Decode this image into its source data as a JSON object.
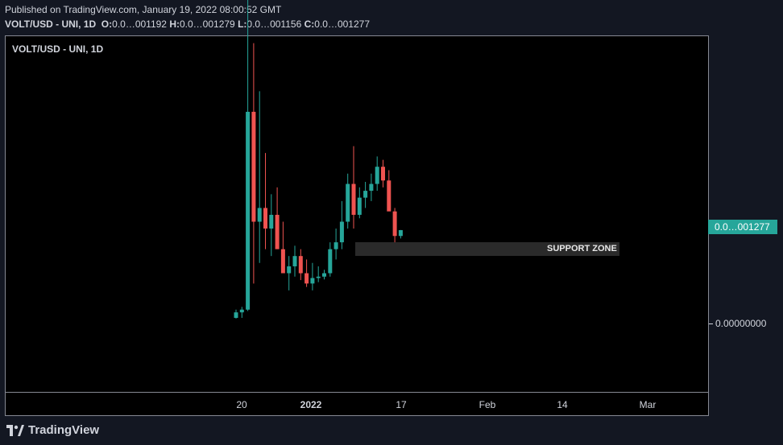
{
  "header": {
    "published": "Published on TradingView.com, January 19, 2022 08:00:52 GMT",
    "symbol_line": "VOLT/USD - UNI, 1D",
    "ohlc": {
      "o_label": "O:",
      "o_value": "0.0…001192",
      "h_label": "H:",
      "h_value": "0.0…001279",
      "l_label": "L:",
      "l_value": "0.0…001156",
      "c_label": "C:",
      "c_value": "0.0…001277"
    }
  },
  "pane_title": "VOLT/USD - UNI, 1D",
  "price_axis": {
    "last_price_tag": "0.0…001277",
    "zero_label": "0.00000000"
  },
  "time_axis": [
    {
      "label": "20",
      "bold": false
    },
    {
      "label": "2022",
      "bold": true
    },
    {
      "label": "17",
      "bold": false
    },
    {
      "label": "Feb",
      "bold": false
    },
    {
      "label": "14",
      "bold": false
    },
    {
      "label": "Mar",
      "bold": false
    }
  ],
  "annotation": {
    "support_zone": "SUPPORT ZONE"
  },
  "branding": {
    "logo_text": "TradingView"
  },
  "colors": {
    "up": "#26a69a",
    "down": "#ef5350",
    "background": "#000000",
    "last_price": "#26a69a"
  },
  "chart_data": {
    "type": "candlestick",
    "title": "VOLT/USD - UNI, 1D",
    "x_start_label": "20",
    "candles": [
      {
        "o": 0.0,
        "h": 1.2e-06,
        "l": -1e-07,
        "c": 8e-07
      },
      {
        "o": 8e-07,
        "h": 1.6e-06,
        "l": 0.0,
        "c": 1.2e-06
      },
      {
        "o": 1.2e-06,
        "h": 0.000118,
        "l": 1e-06,
        "c": 3e-05
      },
      {
        "o": 3e-05,
        "h": 4e-05,
        "l": 5e-06,
        "c": 1.4e-05
      },
      {
        "o": 1.4e-05,
        "h": 3.3e-05,
        "l": 8e-06,
        "c": 1.6e-05
      },
      {
        "o": 1.6e-05,
        "h": 2.4e-05,
        "l": 1e-05,
        "c": 1.3e-05
      },
      {
        "o": 1.3e-05,
        "h": 1.8e-05,
        "l": 9e-06,
        "c": 1.5e-05
      },
      {
        "o": 1.5e-05,
        "h": 1.9e-05,
        "l": 1.1e-05,
        "c": 1e-05
      },
      {
        "o": 1e-05,
        "h": 1.4e-05,
        "l": 7e-06,
        "c": 6.5e-06
      },
      {
        "o": 6.5e-06,
        "h": 9e-06,
        "l": 4e-06,
        "c": 7.5e-06
      },
      {
        "o": 7.5e-06,
        "h": 1.05e-05,
        "l": 6e-06,
        "c": 9e-06
      },
      {
        "o": 9e-06,
        "h": 1e-05,
        "l": 5.5e-06,
        "c": 6.5e-06
      },
      {
        "o": 6.5e-06,
        "h": 8.5e-06,
        "l": 4.5e-06,
        "c": 5e-06
      },
      {
        "o": 5e-06,
        "h": 8e-06,
        "l": 4e-06,
        "c": 5.8e-06
      },
      {
        "o": 5.8e-06,
        "h": 7.5e-06,
        "l": 5.2e-06,
        "c": 6e-06
      },
      {
        "o": 6e-06,
        "h": 7e-06,
        "l": 5.6e-06,
        "c": 6.5e-06
      },
      {
        "o": 6.5e-06,
        "h": 1.1e-05,
        "l": 6e-06,
        "c": 1e-05
      },
      {
        "o": 1e-05,
        "h": 1.3e-05,
        "l": 8.5e-06,
        "c": 1.1e-05
      },
      {
        "o": 1.1e-05,
        "h": 1.7e-05,
        "l": 1e-05,
        "c": 1.4e-05
      },
      {
        "o": 1.4e-05,
        "h": 2.1e-05,
        "l": 1.3e-05,
        "c": 1.95e-05
      },
      {
        "o": 1.95e-05,
        "h": 2.5e-05,
        "l": 1.3e-05,
        "c": 1.5e-05
      },
      {
        "o": 1.5e-05,
        "h": 1.9e-05,
        "l": 1.45e-05,
        "c": 1.75e-05
      },
      {
        "o": 1.75e-05,
        "h": 1.98e-05,
        "l": 1.6e-05,
        "c": 1.85e-05
      },
      {
        "o": 1.85e-05,
        "h": 2.1e-05,
        "l": 1.7e-05,
        "c": 1.95e-05
      },
      {
        "o": 1.95e-05,
        "h": 2.35e-05,
        "l": 1.85e-05,
        "c": 2.2e-05
      },
      {
        "o": 2.2e-05,
        "h": 2.3e-05,
        "l": 1.9e-05,
        "c": 2e-05
      },
      {
        "o": 2e-05,
        "h": 2.15e-05,
        "l": 1.65e-05,
        "c": 1.55e-05
      },
      {
        "o": 1.55e-05,
        "h": 1.6e-05,
        "l": 1.1e-05,
        "c": 1.192e-05
      },
      {
        "o": 1.192e-05,
        "h": 1.279e-05,
        "l": 1.156e-05,
        "c": 1.277e-05
      }
    ],
    "support_zone": {
      "low": 1e-05,
      "high": 1.18e-05,
      "label": "SUPPORT ZONE"
    },
    "last_close": "0.0…001277"
  }
}
